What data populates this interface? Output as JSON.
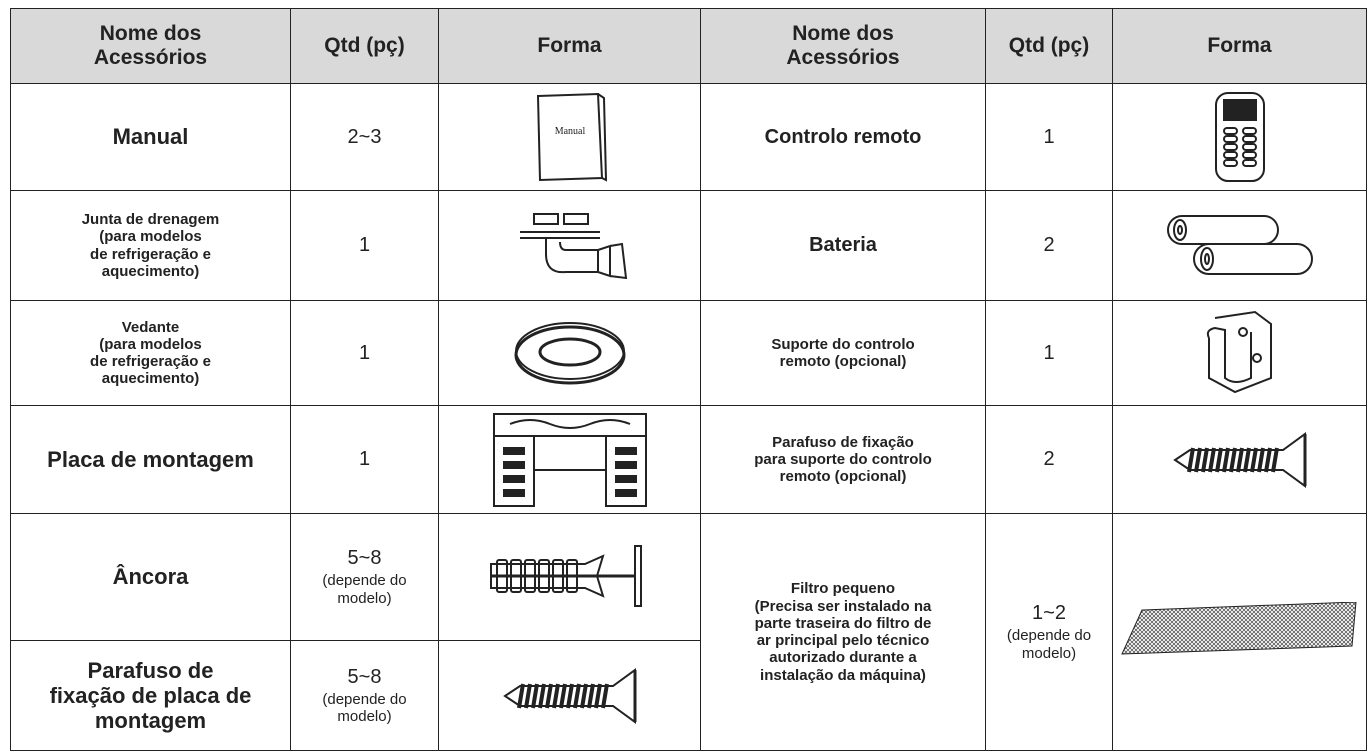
{
  "table": {
    "header": [
      [
        "Nome dos",
        "Acessórios"
      ],
      [
        "Qtd (pç)"
      ],
      [
        "Forma"
      ],
      [
        "Nome dos",
        "Acessórios"
      ],
      [
        "Qtd (pç)"
      ],
      [
        "Forma"
      ]
    ],
    "rows": [
      {
        "left": {
          "name": [
            "Manual"
          ],
          "qty": "2~3",
          "form_text": "Manual"
        },
        "right": {
          "name": [
            "Controlo remoto"
          ],
          "qty": 1
        }
      },
      {
        "left": {
          "name": [
            "Junta de drenagem",
            "(para modelos",
            "de refrigeração e",
            "aquecimento)"
          ],
          "qty": 1
        },
        "right": {
          "name": [
            "Bateria"
          ],
          "qty": 2
        }
      },
      {
        "left": {
          "name": [
            "Vedante",
            "(para modelos",
            "de refrigeração e",
            "aquecimento)"
          ],
          "qty": 1
        },
        "right": {
          "name": [
            "Suporte do controlo",
            "remoto (opcional)"
          ],
          "qty": 1
        }
      },
      {
        "left": {
          "name": [
            "Placa de montagem"
          ],
          "qty": 1
        },
        "right": {
          "name": [
            "Parafuso de fixação",
            "para suporte do controlo",
            "remoto (opcional)"
          ],
          "qty": 2
        }
      },
      {
        "left": {
          "name": [
            "Âncora"
          ],
          "qty": "5~8",
          "qty_note": [
            "(depende do",
            "modelo)"
          ]
        },
        "right": {
          "name": [
            "Filtro pequeno",
            "(Precisa ser instalado na",
            "parte traseira do filtro de",
            "ar principal pelo técnico",
            "autorizado durante a",
            "instalação da máquina)"
          ],
          "qty": "1~2",
          "qty_note": [
            "(depende do",
            "modelo)"
          ]
        }
      },
      {
        "left": {
          "name": [
            "Parafuso de",
            "fixação de placa de",
            "montagem"
          ],
          "qty": "5~8",
          "qty_note": [
            "(depende do",
            "modelo)"
          ]
        }
      }
    ]
  }
}
